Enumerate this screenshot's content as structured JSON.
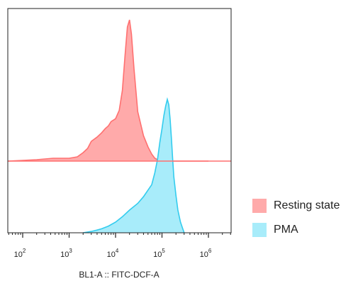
{
  "chart_data": {
    "type": "area",
    "xlabel": "BL1-A :: FITC-DCF-A",
    "x_scale": "log",
    "xlim": [
      10,
      1000000
    ],
    "x_ticks": [
      {
        "base": "10",
        "exp": "2"
      },
      {
        "base": "10",
        "exp": "3"
      },
      {
        "base": "10",
        "exp": "4"
      },
      {
        "base": "10",
        "exp": "5"
      },
      {
        "base": "10",
        "exp": "6"
      }
    ],
    "legend_position": "right",
    "series": [
      {
        "name": "Resting state",
        "color": "#ff7070",
        "fill": "#ffaaaa",
        "x": [
          10,
          100,
          200,
          300,
          450,
          600,
          800,
          1000,
          1500,
          2000,
          2500,
          3000,
          4000,
          5000,
          6000,
          7000,
          8000,
          10000,
          12000,
          14000,
          16000,
          18000,
          20000,
          22000,
          25000,
          30000,
          40000,
          50000,
          60000,
          70000,
          80000,
          100000,
          1000000
        ],
        "y": [
          0,
          0.005,
          0.01,
          0.015,
          0.02,
          0.02,
          0.02,
          0.02,
          0.03,
          0.06,
          0.09,
          0.14,
          0.17,
          0.2,
          0.23,
          0.25,
          0.28,
          0.3,
          0.36,
          0.5,
          0.75,
          0.95,
          1.0,
          0.9,
          0.65,
          0.35,
          0.18,
          0.1,
          0.05,
          0.02,
          0.01,
          0,
          0
        ]
      },
      {
        "name": "PMA",
        "color": "#33ccee",
        "fill": "#a8ecfa",
        "x": [
          2000,
          3000,
          4000,
          5000,
          7000,
          10000,
          14000,
          20000,
          30000,
          40000,
          50000,
          60000,
          70000,
          80000,
          90000,
          100000,
          110000,
          120000,
          130000,
          140000,
          150000,
          160000,
          170000,
          180000,
          200000,
          220000,
          250000,
          280000,
          300000
        ],
        "y": [
          0,
          0.01,
          0.02,
          0.03,
          0.05,
          0.08,
          0.12,
          0.17,
          0.22,
          0.27,
          0.32,
          0.36,
          0.45,
          0.55,
          0.68,
          0.78,
          0.88,
          0.95,
          1.0,
          0.96,
          0.85,
          0.7,
          0.55,
          0.42,
          0.28,
          0.17,
          0.08,
          0.03,
          0
        ]
      }
    ]
  }
}
